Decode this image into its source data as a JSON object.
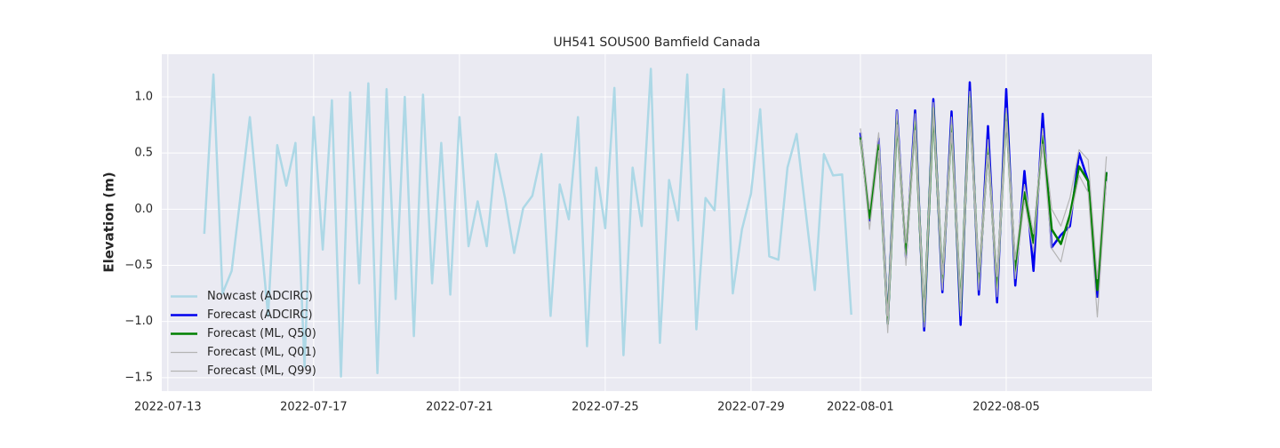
{
  "chart_data": {
    "type": "line",
    "title": "UH541 SOUS00 Bamfield Canada",
    "ylabel": "Elevation (m)",
    "xlim": [
      "2022-07-12 20:00",
      "2022-08-09 00:00"
    ],
    "xticks": [
      "2022-07-13",
      "2022-07-17",
      "2022-07-21",
      "2022-07-25",
      "2022-07-29",
      "2022-08-01",
      "2022-08-05"
    ],
    "ylim": [
      -1.62,
      1.38
    ],
    "yticks": [
      {
        "value": -1.5,
        "label": "−1.5"
      },
      {
        "value": -1,
        "label": "−1.0"
      },
      {
        "value": -0.5,
        "label": "−0.5"
      },
      {
        "value": 0,
        "label": "0.0"
      },
      0.5,
      {
        "value": 1,
        "label": "1.0"
      }
    ],
    "grid": true,
    "legend": "lower left",
    "series": [
      {
        "name": "Nowcast (ADCIRC)",
        "color": "#add8e6",
        "width": 2.5,
        "x": [
          "2022-07-14 00:00",
          "2022-07-14 06:00",
          "2022-07-14 12:00",
          "2022-07-14 18:00",
          "2022-07-15 06:00",
          "2022-07-15 18:00",
          "2022-07-16 00:00",
          "2022-07-16 06:00",
          "2022-07-16 12:00",
          "2022-07-16 18:00",
          "2022-07-17 00:00",
          "2022-07-17 06:00",
          "2022-07-17 12:00",
          "2022-07-17 18:00",
          "2022-07-18 00:00",
          "2022-07-18 06:00",
          "2022-07-18 12:00",
          "2022-07-18 18:00",
          "2022-07-19 00:00",
          "2022-07-19 06:00",
          "2022-07-19 12:00",
          "2022-07-19 18:00",
          "2022-07-20 00:00",
          "2022-07-20 06:00",
          "2022-07-20 12:00",
          "2022-07-20 18:00",
          "2022-07-21 00:00",
          "2022-07-21 06:00",
          "2022-07-21 12:00",
          "2022-07-21 18:00",
          "2022-07-22 00:00",
          "2022-07-22 06:00",
          "2022-07-22 12:00",
          "2022-07-22 18:00",
          "2022-07-23 00:00",
          "2022-07-23 06:00",
          "2022-07-23 12:00",
          "2022-07-23 18:00",
          "2022-07-24 00:00",
          "2022-07-24 06:00",
          "2022-07-24 12:00",
          "2022-07-24 18:00",
          "2022-07-25 00:00",
          "2022-07-25 06:00",
          "2022-07-25 12:00",
          "2022-07-25 18:00",
          "2022-07-26 00:00",
          "2022-07-26 06:00",
          "2022-07-26 12:00",
          "2022-07-26 18:00",
          "2022-07-27 00:00",
          "2022-07-27 06:00",
          "2022-07-27 12:00",
          "2022-07-27 18:00",
          "2022-07-28 00:00",
          "2022-07-28 06:00",
          "2022-07-28 12:00",
          "2022-07-28 18:00",
          "2022-07-29 00:00",
          "2022-07-29 06:00",
          "2022-07-29 12:00",
          "2022-07-29 18:00",
          "2022-07-30 00:00",
          "2022-07-30 06:00",
          "2022-07-30 18:00",
          "2022-07-31 00:00",
          "2022-07-31 06:00",
          "2022-07-31 12:00",
          "2022-07-31 18:00"
        ],
        "values": [
          -0.22,
          1.2,
          -0.75,
          -0.55,
          0.82,
          -0.95,
          0.57,
          0.21,
          0.59,
          -1.4,
          0.82,
          -0.36,
          0.97,
          -1.49,
          1.04,
          -0.66,
          1.12,
          -1.46,
          1.07,
          -0.8,
          1.0,
          -1.13,
          1.02,
          -0.66,
          0.59,
          -0.76,
          0.82,
          -0.33,
          0.07,
          -0.33,
          0.49,
          0.1,
          -0.39,
          0.01,
          0.12,
          0.49,
          -0.95,
          0.22,
          -0.09,
          0.82,
          -1.22,
          0.37,
          -0.17,
          1.08,
          -1.3,
          0.37,
          -0.15,
          1.25,
          -1.19,
          0.26,
          -0.1,
          1.2,
          -1.07,
          0.1,
          -0.01,
          1.07,
          -0.75,
          -0.18,
          0.14,
          0.89,
          -0.42,
          -0.45,
          0.37,
          0.67,
          -0.72,
          0.49,
          0.3,
          0.31,
          -0.94
        ]
      },
      {
        "name": "Forecast (ADCIRC)",
        "color": "#0000ee",
        "width": 2.5,
        "x": [
          "2022-08-01 00:00",
          "2022-08-01 06:00",
          "2022-08-01 12:00",
          "2022-08-01 18:00",
          "2022-08-02 00:00",
          "2022-08-02 06:00",
          "2022-08-02 12:00",
          "2022-08-02 18:00",
          "2022-08-03 00:00",
          "2022-08-03 06:00",
          "2022-08-03 12:00",
          "2022-08-03 18:00",
          "2022-08-04 00:00",
          "2022-08-04 06:00",
          "2022-08-04 12:00",
          "2022-08-04 18:00",
          "2022-08-05 00:00",
          "2022-08-05 06:00",
          "2022-08-05 12:00",
          "2022-08-05 18:00",
          "2022-08-06 00:00",
          "2022-08-06 06:00",
          "2022-08-06 12:00",
          "2022-08-06 18:00",
          "2022-08-07 00:00",
          "2022-08-07 06:00",
          "2022-08-07 12:00",
          "2022-08-07 18:00"
        ],
        "values": [
          0.68,
          -0.1,
          0.63,
          -1.02,
          0.88,
          -0.43,
          0.88,
          -1.08,
          0.98,
          -0.74,
          0.87,
          -1.03,
          1.13,
          -0.76,
          0.74,
          -0.83,
          1.07,
          -0.68,
          0.34,
          -0.55,
          0.85,
          -0.34,
          -0.23,
          -0.15,
          0.5,
          0.25,
          -0.78,
          0.33
        ]
      },
      {
        "name": "Forecast (ML, Q50)",
        "color": "#008000",
        "width": 2.5,
        "x": [
          "2022-08-01 00:00",
          "2022-08-01 06:00",
          "2022-08-01 12:00",
          "2022-08-01 18:00",
          "2022-08-02 00:00",
          "2022-08-02 06:00",
          "2022-08-02 12:00",
          "2022-08-02 18:00",
          "2022-08-03 00:00",
          "2022-08-03 06:00",
          "2022-08-03 12:00",
          "2022-08-03 18:00",
          "2022-08-04 00:00",
          "2022-08-04 06:00",
          "2022-08-04 12:00",
          "2022-08-04 18:00",
          "2022-08-05 00:00",
          "2022-08-05 06:00",
          "2022-08-05 12:00",
          "2022-08-05 18:00",
          "2022-08-06 00:00",
          "2022-08-06 06:00",
          "2022-08-06 12:00",
          "2022-08-06 18:00",
          "2022-08-07 00:00",
          "2022-08-07 06:00",
          "2022-08-07 12:00",
          "2022-08-07 18:00"
        ],
        "values": [
          0.64,
          -0.08,
          0.57,
          -1.02,
          0.8,
          -0.4,
          0.78,
          -1.0,
          0.9,
          -0.65,
          0.75,
          -0.9,
          1.0,
          -0.65,
          0.55,
          -0.7,
          0.85,
          -0.55,
          0.15,
          -0.3,
          0.65,
          -0.18,
          -0.31,
          -0.05,
          0.38,
          0.25,
          -0.72,
          0.33
        ]
      },
      {
        "name": "Forecast (ML, Q01)",
        "color": "#b4b4b4",
        "width": 1.2,
        "x": [
          "2022-08-01 00:00",
          "2022-08-01 06:00",
          "2022-08-01 12:00",
          "2022-08-01 18:00",
          "2022-08-02 00:00",
          "2022-08-02 06:00",
          "2022-08-02 12:00",
          "2022-08-02 18:00",
          "2022-08-03 00:00",
          "2022-08-03 06:00",
          "2022-08-03 12:00",
          "2022-08-03 18:00",
          "2022-08-04 00:00",
          "2022-08-04 06:00",
          "2022-08-04 12:00",
          "2022-08-04 18:00",
          "2022-08-05 00:00",
          "2022-08-05 06:00",
          "2022-08-05 12:00",
          "2022-08-05 18:00",
          "2022-08-06 00:00",
          "2022-08-06 06:00",
          "2022-08-06 12:00",
          "2022-08-06 18:00",
          "2022-08-07 00:00",
          "2022-08-07 06:00",
          "2022-08-07 12:00",
          "2022-08-07 18:00"
        ],
        "values": [
          0.62,
          -0.18,
          0.52,
          -1.1,
          0.75,
          -0.5,
          0.7,
          -1.05,
          0.85,
          -0.72,
          0.68,
          -0.95,
          0.9,
          -0.72,
          0.48,
          -0.78,
          0.78,
          -0.62,
          0.08,
          -0.38,
          0.58,
          -0.35,
          -0.47,
          -0.1,
          0.3,
          0.15,
          -0.96,
          0.25
        ]
      },
      {
        "name": "Forecast (ML, Q99)",
        "color": "#b4b4b4",
        "width": 1.2,
        "x": [
          "2022-08-01 00:00",
          "2022-08-01 06:00",
          "2022-08-01 12:00",
          "2022-08-01 18:00",
          "2022-08-02 00:00",
          "2022-08-02 06:00",
          "2022-08-02 12:00",
          "2022-08-02 18:00",
          "2022-08-03 00:00",
          "2022-08-03 06:00",
          "2022-08-03 12:00",
          "2022-08-03 18:00",
          "2022-08-04 00:00",
          "2022-08-04 06:00",
          "2022-08-04 12:00",
          "2022-08-04 18:00",
          "2022-08-05 00:00",
          "2022-08-05 06:00",
          "2022-08-05 12:00",
          "2022-08-05 18:00",
          "2022-08-06 00:00",
          "2022-08-06 06:00",
          "2022-08-06 12:00",
          "2022-08-06 18:00",
          "2022-08-07 00:00",
          "2022-08-07 06:00",
          "2022-08-07 12:00",
          "2022-08-07 18:00"
        ],
        "values": [
          0.72,
          0.0,
          0.68,
          -0.95,
          0.88,
          -0.3,
          0.85,
          -0.92,
          0.95,
          -0.58,
          0.82,
          -0.82,
          1.05,
          -0.56,
          0.62,
          -0.6,
          0.9,
          -0.45,
          0.22,
          -0.22,
          0.72,
          0.0,
          -0.15,
          0.1,
          0.53,
          0.44,
          -0.62,
          0.47
        ]
      }
    ]
  }
}
